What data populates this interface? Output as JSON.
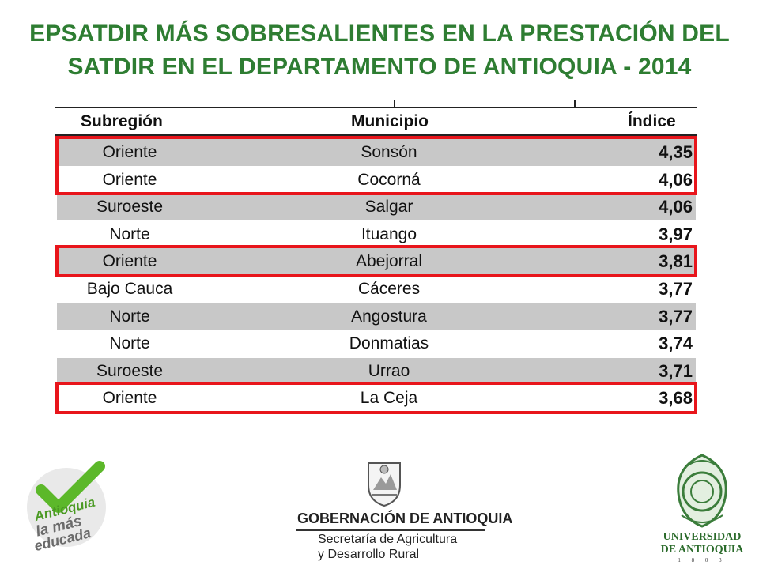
{
  "title": {
    "line1": "EPSATDIR MÁS SOBRESALIENTES EN LA PRESTACIÓN DEL",
    "line2": "SATDIR EN EL DEPARTAMENTO DE ANTIOQUIA - 2014"
  },
  "table": {
    "headers": {
      "subregion": "Subregión",
      "municipio": "Municipio",
      "indice": "Índice"
    },
    "rows": [
      {
        "subregion": "Oriente",
        "municipio": "Sonsón",
        "indice": "4,35",
        "shaded": true,
        "highlighted": true
      },
      {
        "subregion": "Oriente",
        "municipio": "Cocorná",
        "indice": "4,06",
        "shaded": false,
        "highlighted": true
      },
      {
        "subregion": "Suroeste",
        "municipio": "Salgar",
        "indice": "4,06",
        "shaded": true,
        "highlighted": false
      },
      {
        "subregion": "Norte",
        "municipio": "Ituango",
        "indice": "3,97",
        "shaded": false,
        "highlighted": false
      },
      {
        "subregion": "Oriente",
        "municipio": "Abejorral",
        "indice": "3,81",
        "shaded": true,
        "highlighted": true
      },
      {
        "subregion": "Bajo Cauca",
        "municipio": "Cáceres",
        "indice": "3,77",
        "shaded": false,
        "highlighted": false
      },
      {
        "subregion": "Norte",
        "municipio": "Angostura",
        "indice": "3,77",
        "shaded": true,
        "highlighted": false
      },
      {
        "subregion": "Norte",
        "municipio": "Donmatias",
        "indice": "3,74",
        "shaded": false,
        "highlighted": false
      },
      {
        "subregion": "Suroeste",
        "municipio": "Urrao",
        "indice": "3,71",
        "shaded": true,
        "highlighted": false
      },
      {
        "subregion": "Oriente",
        "municipio": "La Ceja",
        "indice": "3,68",
        "shaded": false,
        "highlighted": true
      }
    ]
  },
  "logos": {
    "left": {
      "text1": "Antioquia",
      "text2": "la más",
      "text3": "educada"
    },
    "middle": {
      "text1": "GOBERNACIÓN DE ANTIOQUIA",
      "text2": "Secretaría de Agricultura",
      "text3": "y Desarrollo Rural"
    },
    "right": {
      "text1": "UNIVERSIDAD",
      "text2": "DE ANTIOQUIA",
      "text3": "1 8 0 3"
    }
  },
  "colors": {
    "title": "#2e7d32",
    "highlight": "#e8151b",
    "shade": "#c8c8c8"
  }
}
